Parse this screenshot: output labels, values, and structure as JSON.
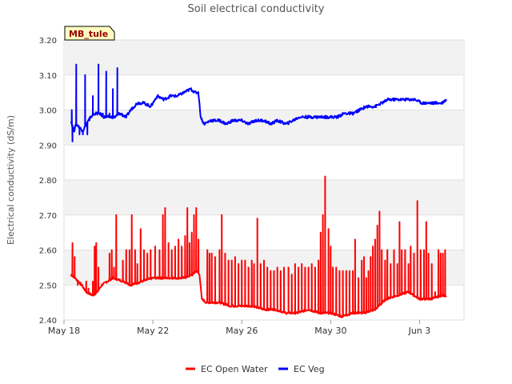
{
  "chart_data": {
    "type": "line",
    "title": "Soil electrical conductivity",
    "ylabel": "Electrical conductivity (dS/m)",
    "xlabel": "",
    "site_label": "MB_tule",
    "ylim": [
      2.4,
      3.2
    ],
    "xlim_days": [
      0,
      18
    ],
    "y_ticks": [
      2.4,
      2.5,
      2.6,
      2.7,
      2.8,
      2.9,
      3.0,
      3.1,
      3.2
    ],
    "y_tick_labels": [
      "2.40",
      "2.50",
      "2.60",
      "2.70",
      "2.80",
      "2.90",
      "3.00",
      "3.10",
      "3.20"
    ],
    "x_ticks": [
      {
        "label": "May 18",
        "day": 0
      },
      {
        "label": "May 22",
        "day": 4
      },
      {
        "label": "May 26",
        "day": 8
      },
      {
        "label": "May 30",
        "day": 12
      },
      {
        "label": "Jun 3",
        "day": 16
      }
    ],
    "series": [
      {
        "name": "EC Open Water",
        "color": "#ff0000",
        "baseline": [
          [
            0.3,
            2.53
          ],
          [
            0.5,
            2.52
          ],
          [
            0.8,
            2.5
          ],
          [
            1.0,
            2.48
          ],
          [
            1.3,
            2.47
          ],
          [
            1.5,
            2.48
          ],
          [
            1.7,
            2.5
          ],
          [
            2.2,
            2.52
          ],
          [
            2.7,
            2.51
          ],
          [
            3.0,
            2.5
          ],
          [
            3.5,
            2.51
          ],
          [
            4.0,
            2.52
          ],
          [
            4.5,
            2.52
          ],
          [
            5.0,
            2.52
          ],
          [
            5.4,
            2.52
          ],
          [
            5.8,
            2.53
          ],
          [
            5.95,
            2.54
          ],
          [
            6.1,
            2.53
          ],
          [
            6.2,
            2.46
          ],
          [
            6.4,
            2.45
          ],
          [
            7.0,
            2.45
          ],
          [
            7.5,
            2.44
          ],
          [
            8.0,
            2.44
          ],
          [
            8.5,
            2.44
          ],
          [
            9.0,
            2.43
          ],
          [
            9.5,
            2.43
          ],
          [
            10.0,
            2.42
          ],
          [
            10.5,
            2.42
          ],
          [
            11.0,
            2.43
          ],
          [
            11.5,
            2.42
          ],
          [
            12.0,
            2.42
          ],
          [
            12.5,
            2.41
          ],
          [
            13.0,
            2.42
          ],
          [
            13.5,
            2.42
          ],
          [
            14.0,
            2.43
          ],
          [
            14.5,
            2.46
          ],
          [
            15.0,
            2.47
          ],
          [
            15.5,
            2.48
          ],
          [
            16.0,
            2.46
          ],
          [
            16.5,
            2.46
          ],
          [
            17.0,
            2.47
          ],
          [
            17.2,
            2.47
          ]
        ],
        "spikes": [
          [
            0.38,
            2.62
          ],
          [
            0.48,
            2.58
          ],
          [
            0.62,
            2.5
          ],
          [
            0.75,
            2.5
          ],
          [
            0.88,
            2.49
          ],
          [
            1.0,
            2.51
          ],
          [
            1.1,
            2.49
          ],
          [
            1.3,
            2.51
          ],
          [
            1.38,
            2.61
          ],
          [
            1.45,
            2.62
          ],
          [
            1.55,
            2.55
          ],
          [
            1.9,
            2.51
          ],
          [
            2.05,
            2.59
          ],
          [
            2.15,
            2.6
          ],
          [
            2.25,
            2.55
          ],
          [
            2.35,
            2.7
          ],
          [
            2.65,
            2.57
          ],
          [
            2.8,
            2.6
          ],
          [
            2.95,
            2.6
          ],
          [
            3.05,
            2.7
          ],
          [
            3.2,
            2.6
          ],
          [
            3.3,
            2.56
          ],
          [
            3.45,
            2.66
          ],
          [
            3.6,
            2.6
          ],
          [
            3.75,
            2.59
          ],
          [
            3.9,
            2.6
          ],
          [
            4.1,
            2.61
          ],
          [
            4.3,
            2.6
          ],
          [
            4.45,
            2.7
          ],
          [
            4.55,
            2.72
          ],
          [
            4.7,
            2.62
          ],
          [
            4.85,
            2.6
          ],
          [
            5.0,
            2.61
          ],
          [
            5.15,
            2.63
          ],
          [
            5.3,
            2.61
          ],
          [
            5.45,
            2.64
          ],
          [
            5.55,
            2.72
          ],
          [
            5.65,
            2.62
          ],
          [
            5.75,
            2.65
          ],
          [
            5.85,
            2.7
          ],
          [
            5.95,
            2.72
          ],
          [
            6.05,
            2.63
          ],
          [
            6.25,
            2.46
          ],
          [
            6.45,
            2.6
          ],
          [
            6.55,
            2.59
          ],
          [
            6.65,
            2.59
          ],
          [
            6.8,
            2.58
          ],
          [
            7.0,
            2.6
          ],
          [
            7.1,
            2.7
          ],
          [
            7.25,
            2.59
          ],
          [
            7.4,
            2.57
          ],
          [
            7.55,
            2.57
          ],
          [
            7.7,
            2.58
          ],
          [
            7.85,
            2.56
          ],
          [
            8.0,
            2.57
          ],
          [
            8.15,
            2.57
          ],
          [
            8.3,
            2.55
          ],
          [
            8.45,
            2.57
          ],
          [
            8.55,
            2.56
          ],
          [
            8.7,
            2.69
          ],
          [
            8.85,
            2.56
          ],
          [
            9.0,
            2.57
          ],
          [
            9.15,
            2.55
          ],
          [
            9.3,
            2.54
          ],
          [
            9.45,
            2.54
          ],
          [
            9.6,
            2.55
          ],
          [
            9.75,
            2.54
          ],
          [
            9.9,
            2.55
          ],
          [
            10.1,
            2.55
          ],
          [
            10.25,
            2.53
          ],
          [
            10.4,
            2.56
          ],
          [
            10.55,
            2.55
          ],
          [
            10.7,
            2.56
          ],
          [
            10.85,
            2.55
          ],
          [
            11.0,
            2.55
          ],
          [
            11.15,
            2.56
          ],
          [
            11.3,
            2.55
          ],
          [
            11.45,
            2.57
          ],
          [
            11.55,
            2.65
          ],
          [
            11.65,
            2.7
          ],
          [
            11.75,
            2.81
          ],
          [
            11.9,
            2.66
          ],
          [
            12.0,
            2.61
          ],
          [
            12.1,
            2.55
          ],
          [
            12.25,
            2.55
          ],
          [
            12.4,
            2.54
          ],
          [
            12.55,
            2.54
          ],
          [
            12.7,
            2.54
          ],
          [
            12.85,
            2.54
          ],
          [
            13.0,
            2.54
          ],
          [
            13.1,
            2.63
          ],
          [
            13.25,
            2.52
          ],
          [
            13.4,
            2.57
          ],
          [
            13.5,
            2.58
          ],
          [
            13.6,
            2.52
          ],
          [
            13.7,
            2.54
          ],
          [
            13.8,
            2.58
          ],
          [
            13.9,
            2.61
          ],
          [
            14.0,
            2.63
          ],
          [
            14.1,
            2.67
          ],
          [
            14.2,
            2.71
          ],
          [
            14.3,
            2.6
          ],
          [
            14.45,
            2.57
          ],
          [
            14.55,
            2.6
          ],
          [
            14.7,
            2.56
          ],
          [
            14.85,
            2.6
          ],
          [
            15.0,
            2.56
          ],
          [
            15.1,
            2.68
          ],
          [
            15.2,
            2.6
          ],
          [
            15.35,
            2.6
          ],
          [
            15.5,
            2.56
          ],
          [
            15.6,
            2.61
          ],
          [
            15.75,
            2.59
          ],
          [
            15.9,
            2.74
          ],
          [
            16.05,
            2.6
          ],
          [
            16.2,
            2.6
          ],
          [
            16.3,
            2.68
          ],
          [
            16.4,
            2.59
          ],
          [
            16.55,
            2.56
          ],
          [
            16.7,
            2.48
          ],
          [
            16.85,
            2.6
          ],
          [
            16.95,
            2.59
          ],
          [
            17.05,
            2.59
          ],
          [
            17.15,
            2.6
          ]
        ]
      },
      {
        "name": "EC Veg",
        "color": "#0000ff",
        "baseline": [
          [
            0.3,
            2.97
          ],
          [
            0.45,
            2.94
          ],
          [
            0.55,
            2.96
          ],
          [
            0.7,
            2.95
          ],
          [
            0.85,
            2.94
          ],
          [
            1.0,
            2.96
          ],
          [
            1.2,
            2.98
          ],
          [
            1.4,
            2.99
          ],
          [
            1.6,
            2.99
          ],
          [
            1.8,
            2.98
          ],
          [
            2.0,
            2.98
          ],
          [
            2.3,
            2.98
          ],
          [
            2.5,
            2.99
          ],
          [
            2.8,
            2.98
          ],
          [
            3.0,
            3.0
          ],
          [
            3.3,
            3.02
          ],
          [
            3.6,
            3.02
          ],
          [
            3.9,
            3.01
          ],
          [
            4.2,
            3.04
          ],
          [
            4.5,
            3.03
          ],
          [
            4.8,
            3.04
          ],
          [
            5.1,
            3.04
          ],
          [
            5.4,
            3.05
          ],
          [
            5.7,
            3.06
          ],
          [
            5.9,
            3.05
          ],
          [
            6.05,
            3.05
          ],
          [
            6.15,
            2.98
          ],
          [
            6.3,
            2.96
          ],
          [
            6.6,
            2.97
          ],
          [
            7.0,
            2.97
          ],
          [
            7.3,
            2.96
          ],
          [
            7.6,
            2.97
          ],
          [
            8.0,
            2.97
          ],
          [
            8.3,
            2.96
          ],
          [
            8.6,
            2.97
          ],
          [
            9.0,
            2.97
          ],
          [
            9.3,
            2.96
          ],
          [
            9.6,
            2.97
          ],
          [
            10.0,
            2.96
          ],
          [
            10.3,
            2.97
          ],
          [
            10.6,
            2.98
          ],
          [
            11.0,
            2.98
          ],
          [
            11.3,
            2.98
          ],
          [
            11.6,
            2.98
          ],
          [
            12.0,
            2.98
          ],
          [
            12.3,
            2.98
          ],
          [
            12.6,
            2.99
          ],
          [
            13.0,
            2.99
          ],
          [
            13.3,
            3.0
          ],
          [
            13.6,
            3.01
          ],
          [
            14.0,
            3.01
          ],
          [
            14.3,
            3.02
          ],
          [
            14.6,
            3.03
          ],
          [
            14.9,
            3.03
          ],
          [
            15.2,
            3.03
          ],
          [
            15.5,
            3.03
          ],
          [
            15.8,
            3.03
          ],
          [
            16.1,
            3.02
          ],
          [
            16.4,
            3.02
          ],
          [
            16.7,
            3.02
          ],
          [
            17.0,
            3.02
          ],
          [
            17.2,
            3.03
          ]
        ],
        "spikes": [
          [
            0.35,
            3.0
          ],
          [
            0.38,
            2.91
          ],
          [
            0.55,
            3.13
          ],
          [
            0.7,
            2.93
          ],
          [
            0.85,
            2.93
          ],
          [
            0.95,
            3.1
          ],
          [
            1.05,
            2.93
          ],
          [
            1.15,
            2.97
          ],
          [
            1.3,
            3.04
          ],
          [
            1.55,
            3.13
          ],
          [
            1.75,
            2.99
          ],
          [
            1.9,
            3.11
          ],
          [
            2.05,
            2.99
          ],
          [
            2.2,
            3.06
          ],
          [
            2.4,
            3.12
          ],
          [
            2.6,
            2.99
          ]
        ]
      }
    ]
  }
}
